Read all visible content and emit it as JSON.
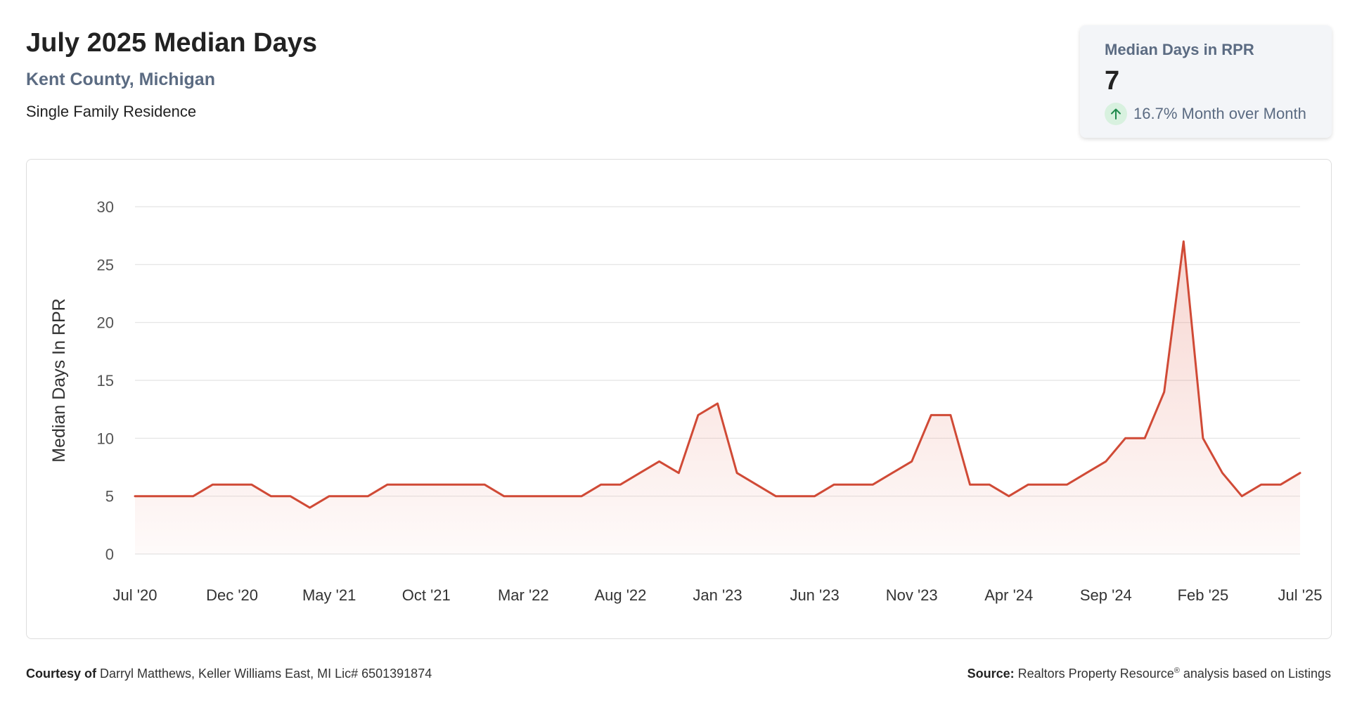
{
  "header": {
    "title": "July 2025 Median Days",
    "subtitle": "Kent County, Michigan",
    "descriptor": "Single Family Residence"
  },
  "stat_card": {
    "label": "Median Days in RPR",
    "value": "7",
    "change_icon": "arrow-up-icon",
    "change_text": "16.7% Month over Month",
    "colors": {
      "arrow": "#1f8a4c",
      "badge": "#d8f1df"
    }
  },
  "chart_data": {
    "type": "area",
    "ylabel": "Median Days In RPR",
    "xlabel": "",
    "ylim": [
      0,
      30
    ],
    "yticks": [
      0,
      5,
      10,
      15,
      20,
      25,
      30
    ],
    "xtick_labels": [
      "Jul '20",
      "Dec '20",
      "May '21",
      "Oct '21",
      "Mar '22",
      "Aug '22",
      "Jan '23",
      "Jun '23",
      "Nov '23",
      "Apr '24",
      "Sep '24",
      "Feb '25",
      "Jul '25"
    ],
    "grid": true,
    "series": [
      {
        "values": [
          5,
          5,
          5,
          5,
          6,
          6,
          6,
          5,
          5,
          4,
          5,
          5,
          5,
          6,
          6,
          6,
          6,
          6,
          6,
          5,
          5,
          5,
          5,
          5,
          6,
          6,
          7,
          8,
          7,
          12,
          13,
          7,
          6,
          5,
          5,
          5,
          6,
          6,
          6,
          7,
          8,
          12,
          12,
          6,
          6,
          5,
          6,
          6,
          6,
          7,
          8,
          10,
          10,
          14,
          27,
          10,
          7,
          5,
          6,
          6,
          7
        ],
        "color": "#d04a36"
      }
    ]
  },
  "footer": {
    "courtesy_label": "Courtesy of",
    "courtesy_text": "Darryl Matthews, Keller Williams East, MI Lic# 6501391874",
    "source_label": "Source:",
    "source_text_a": "Realtors Property Resource",
    "source_reg": "®",
    "source_text_b": " analysis based on Listings"
  }
}
